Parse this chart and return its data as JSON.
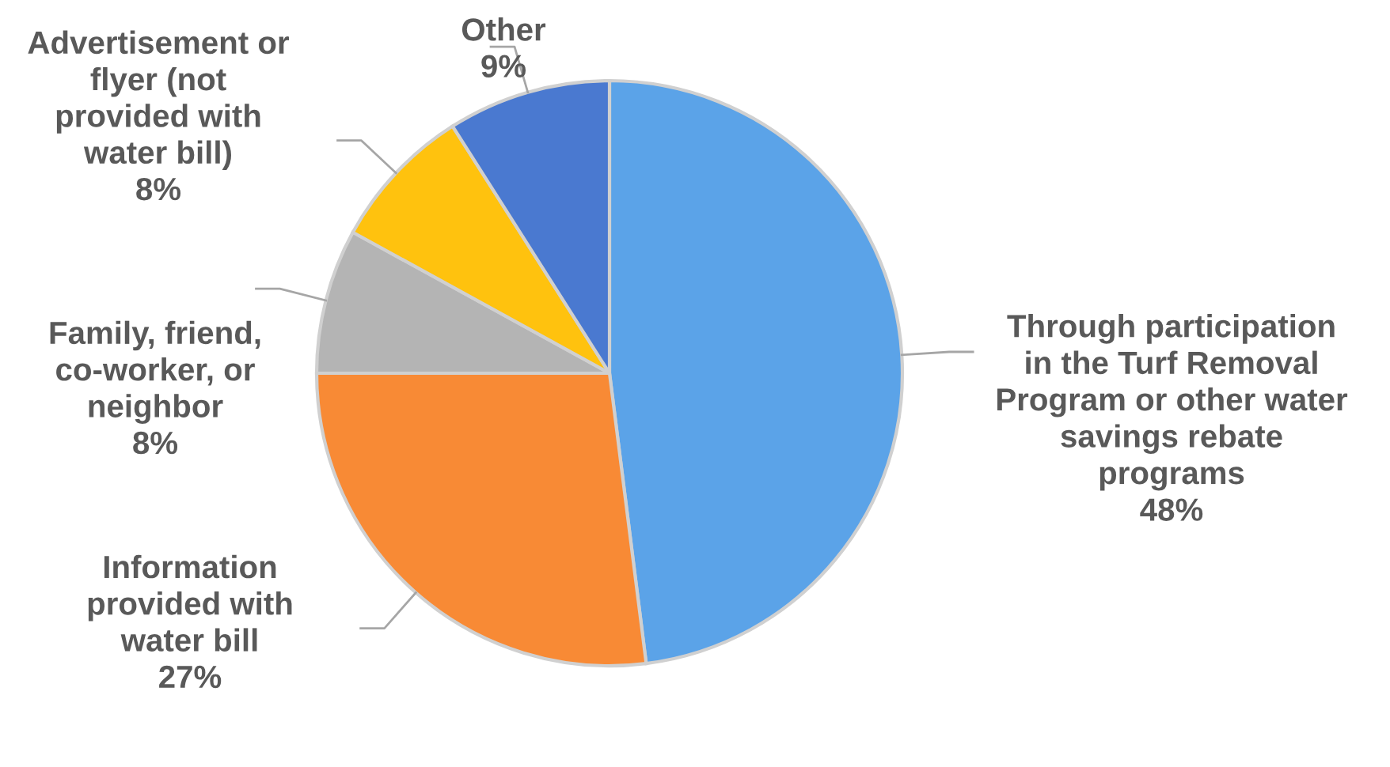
{
  "chart_data": {
    "type": "pie",
    "categories": [
      "Through participation\nin the Turf Removal\nProgram or other water\nsavings rebate\nprograms",
      "Information\nprovided with\nwater bill",
      "Family, friend,\nco-worker, or\nneighbor",
      "Advertisement or\nflyer (not\nprovided with\nwater bill)",
      "Other"
    ],
    "values": [
      48,
      27,
      8,
      8,
      9
    ],
    "value_labels": [
      "48%",
      "27%",
      "8%",
      "8%",
      "9%"
    ],
    "colors": [
      "#5ba3e8",
      "#f88a35",
      "#b4b4b4",
      "#ffc20e",
      "#4a79d0"
    ]
  }
}
